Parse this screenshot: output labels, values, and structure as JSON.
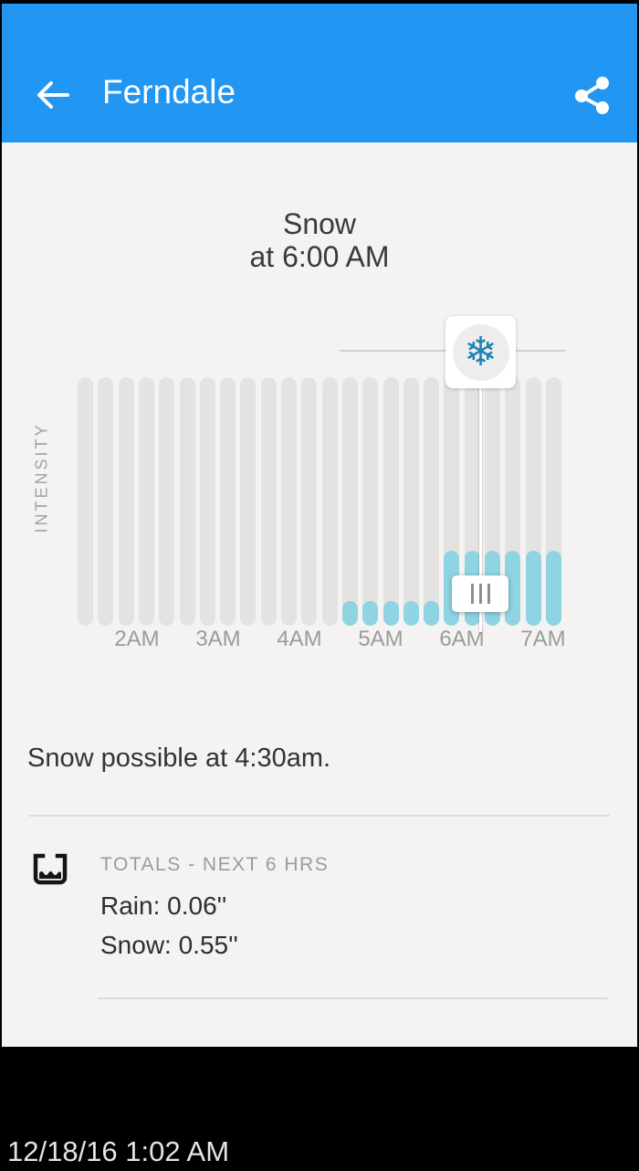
{
  "header": {
    "title": "Ferndale",
    "back_icon": "arrow-left",
    "share_icon": "share"
  },
  "chart": {
    "type": "bar",
    "title_line1": "Snow",
    "title_line2": "at 6:00 AM",
    "y_axis_label": "INTENSITY",
    "selected_time": "6:00 AM",
    "selected_condition": "snow",
    "selected_condition_icon": "snowflake-icon",
    "x_labels": [
      "2AM",
      "3AM",
      "4AM",
      "5AM",
      "6AM",
      "7AM"
    ],
    "bars": [
      {
        "time": "1:15 AM",
        "intensity": "none"
      },
      {
        "time": "1:30 AM",
        "intensity": "none"
      },
      {
        "time": "1:45 AM",
        "intensity": "none"
      },
      {
        "time": "2:00 AM",
        "intensity": "none"
      },
      {
        "time": "2:15 AM",
        "intensity": "none"
      },
      {
        "time": "2:30 AM",
        "intensity": "none"
      },
      {
        "time": "2:45 AM",
        "intensity": "none"
      },
      {
        "time": "3:00 AM",
        "intensity": "none"
      },
      {
        "time": "3:15 AM",
        "intensity": "none"
      },
      {
        "time": "3:30 AM",
        "intensity": "none"
      },
      {
        "time": "3:45 AM",
        "intensity": "none"
      },
      {
        "time": "4:00 AM",
        "intensity": "none"
      },
      {
        "time": "4:15 AM",
        "intensity": "none"
      },
      {
        "time": "4:30 AM",
        "intensity": "light"
      },
      {
        "time": "4:45 AM",
        "intensity": "light"
      },
      {
        "time": "5:00 AM",
        "intensity": "light"
      },
      {
        "time": "5:15 AM",
        "intensity": "light"
      },
      {
        "time": "5:30 AM",
        "intensity": "light"
      },
      {
        "time": "5:45 AM",
        "intensity": "moderate"
      },
      {
        "time": "6:00 AM",
        "intensity": "moderate"
      },
      {
        "time": "6:15 AM",
        "intensity": "moderate"
      },
      {
        "time": "6:30 AM",
        "intensity": "moderate"
      },
      {
        "time": "6:45 AM",
        "intensity": "moderate"
      },
      {
        "time": "7:00 AM",
        "intensity": "moderate"
      }
    ],
    "colors": {
      "bar_track": "#e4e3e1",
      "bar_fill": "#8fd4e2",
      "snowflake": "#1d85b7",
      "header_accent": "#2196f3"
    }
  },
  "summary": {
    "text": "Snow possible at 4:30am."
  },
  "totals": {
    "icon": "precip-gauge-icon",
    "heading": "TOTALS - NEXT 6 HRS",
    "rain_line": "Rain: 0.06''",
    "snow_line": "Snow: 0.55''"
  },
  "footer": {
    "timestamp": "12/18/16 1:02 AM"
  },
  "glyphs": {
    "snowflake": "❄"
  }
}
